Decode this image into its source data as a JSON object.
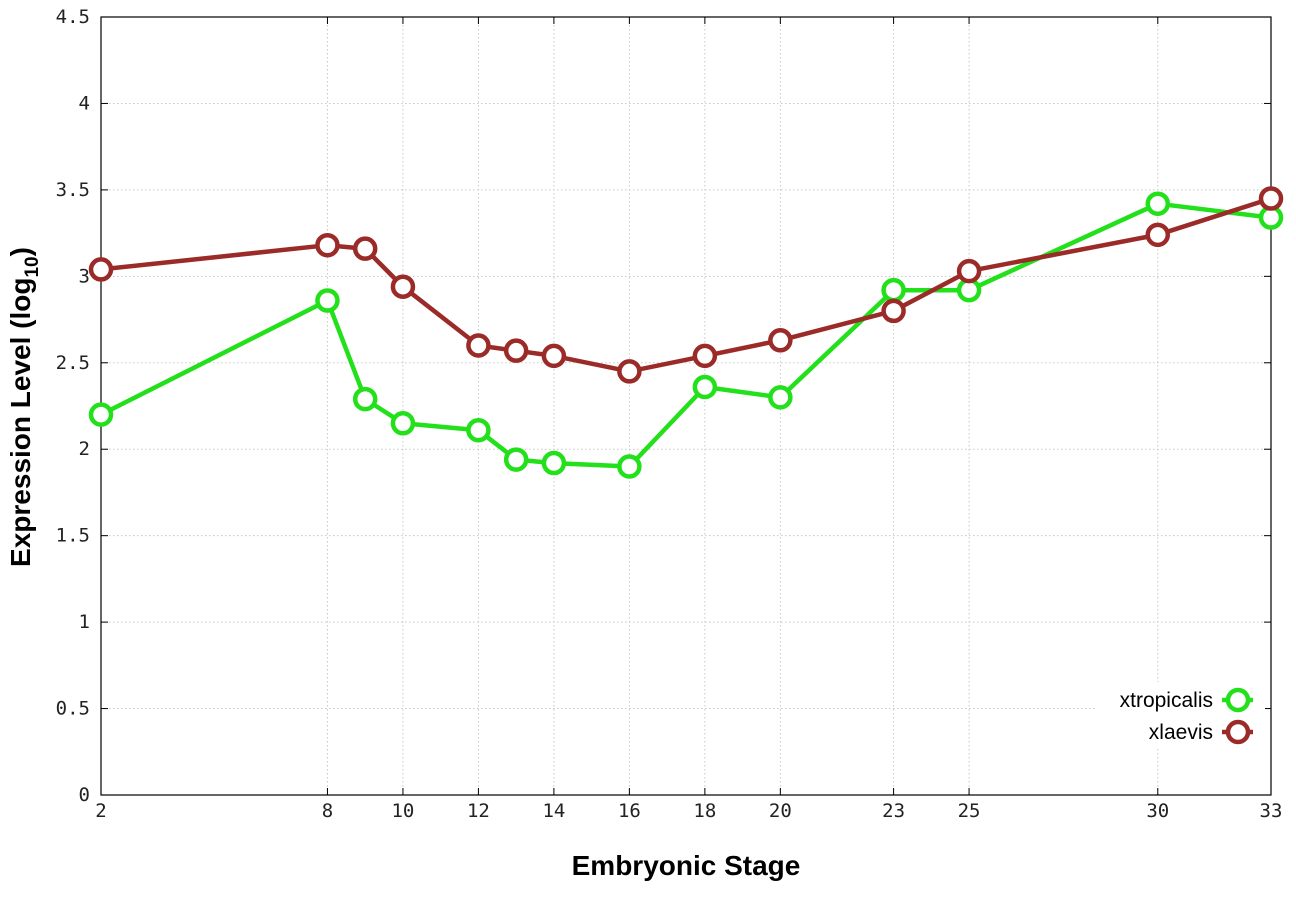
{
  "chart_data": {
    "type": "line",
    "xlabel": "Embryonic Stage",
    "ylabel_main": "Expression Level (log",
    "ylabel_sub": "10",
    "ylabel_close": ")",
    "x_ticks": [
      2,
      8,
      10,
      12,
      14,
      16,
      18,
      20,
      23,
      25,
      30,
      33
    ],
    "y_ticks": [
      "0",
      "0.5",
      "1",
      "1.5",
      "2",
      "2.5",
      "3",
      "3.5",
      "4",
      "4.5"
    ],
    "xlim": [
      2,
      33
    ],
    "ylim": [
      0,
      4.5
    ],
    "grid": true,
    "legend_position": "bottom-right",
    "series": [
      {
        "name": "xtropicalis",
        "color": "#22e01a",
        "x": [
          2,
          8,
          9,
          10,
          12,
          13,
          14,
          16,
          18,
          20,
          23,
          25,
          30,
          33
        ],
        "y": [
          2.2,
          2.86,
          2.29,
          2.15,
          2.11,
          1.94,
          1.92,
          1.9,
          2.36,
          2.3,
          2.92,
          2.92,
          3.42,
          3.34
        ]
      },
      {
        "name": "xlaevis",
        "color": "#9b2b28",
        "x": [
          2,
          8,
          9,
          10,
          12,
          13,
          14,
          16,
          18,
          20,
          23,
          25,
          30,
          33
        ],
        "y": [
          3.04,
          3.18,
          3.16,
          2.94,
          2.6,
          2.57,
          2.54,
          2.45,
          2.54,
          2.63,
          2.8,
          3.03,
          3.24,
          3.45
        ]
      }
    ]
  }
}
